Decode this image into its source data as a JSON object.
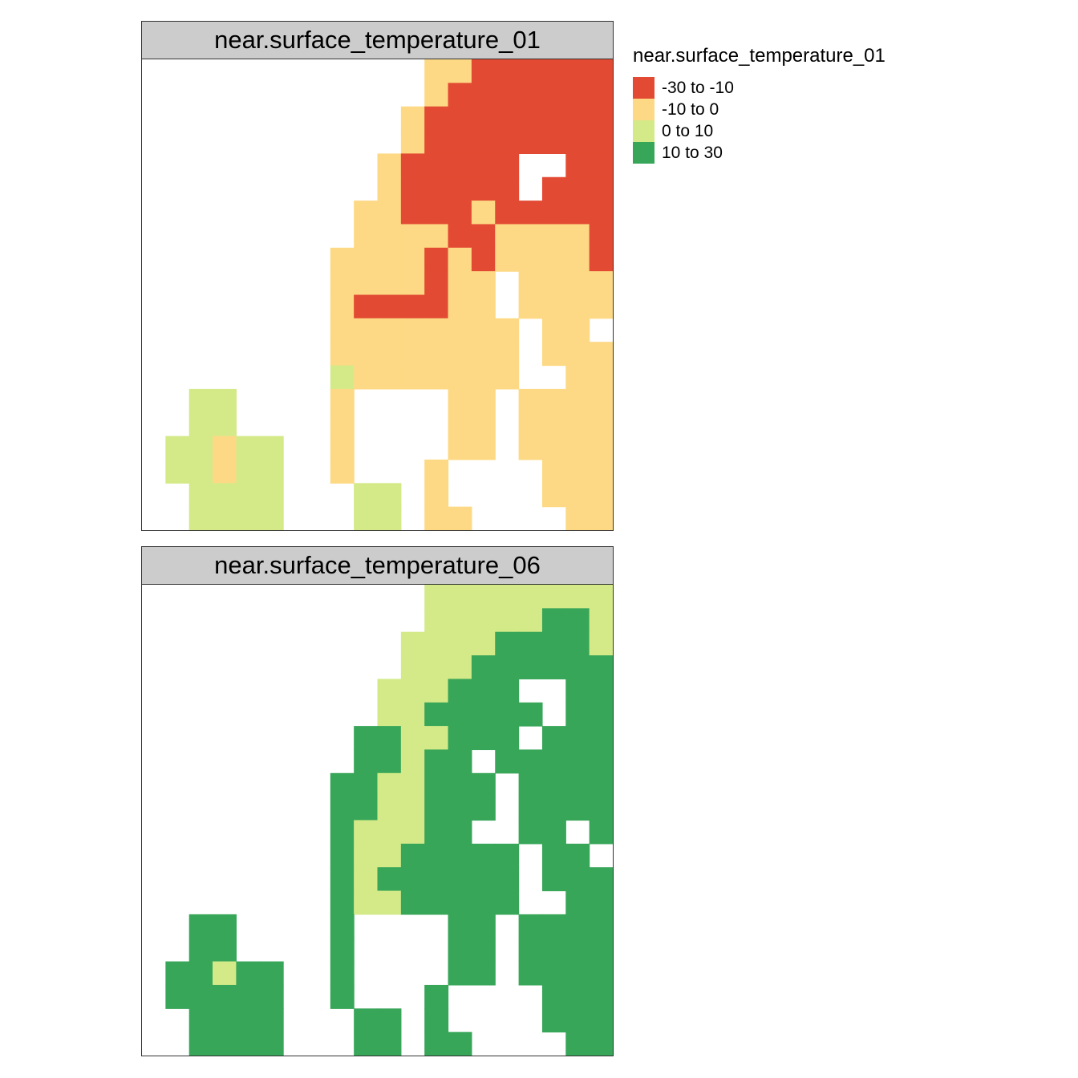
{
  "panels": [
    {
      "title": "near.surface_temperature_01"
    },
    {
      "title": "near.surface_temperature_06"
    }
  ],
  "legend": {
    "title": "near.surface_temperature_01",
    "classes": [
      {
        "label": "-30 to -10",
        "color": "#E34A33",
        "code": "R"
      },
      {
        "label": "-10 to 0",
        "color": "#FDD985",
        "code": "Y"
      },
      {
        "label": "0 to 10",
        "color": "#D4EA88",
        "code": "L"
      },
      {
        "label": "10 to 30",
        "color": "#38A659",
        "code": "G"
      }
    ]
  },
  "chart_data": [
    {
      "type": "heatmap",
      "title": "near.surface_temperature_01",
      "grid_note": "20 columns x 20 rows raster; codes: R=-30 to -10, Y=-10 to 0, L=0 to 10, G=10 to 30, .=no data",
      "rows": [
        "............YYRRRRRR",
        "............YRRRRRRR",
        "...........YRRRRRRRR",
        "...........YRRRRRRRR",
        "..........YRRRRR..RR",
        "..........YRRRRR.RRR",
        ".........YYRRRYRRRRR",
        ".........YYYYRRYYYYR",
        "........YYYYRYRYYYYR",
        "........YYYYRYY.YYYY",
        "........YRRRRYY.YYYY",
        "........YYYYYYYY.YY.",
        "........YYYYYYYY.YYY",
        "........LYYYYYYY..YY",
        "..LL....Y....YY.YYYY",
        "..LL....Y....YY.YYYY",
        ".LLYLL..Y....YY.YYYY",
        ".LLYLL..Y...Y....YYY",
        "..LLLL...LL.Y....YYY",
        "..LLLL...LL.YY....YY"
      ]
    },
    {
      "type": "heatmap",
      "title": "near.surface_temperature_06",
      "grid_note": "20 columns x 20 rows raster; codes: R=-30 to -10, Y=-10 to 0, L=0 to 10, G=10 to 30, .=no data",
      "rows": [
        "............LLLLLLLL",
        "............LLLLLGGL",
        "...........LLLLGGGGL",
        "...........LLLGGGGGG",
        "..........LLLGGG..GG",
        "..........LLGGGGG.GG",
        ".........GGLLGGG.GGG",
        ".........GGLGG.GGGGG",
        "........GGLLGGG.GGGG",
        "........GGLLGGG.GGGG",
        "........GLLLGG..GG.G",
        "........GLLGGGGG.GG.",
        "........GLGGGGGG.GGG",
        "........GLLGGGGG..GG",
        "..GG....G....GG.GGGG",
        "..GG....G....GG.GGGG",
        ".GGLGG..G....GG.GGGG",
        ".GGGGG..G...G....GGG",
        "..GGGG...GG.G....GGG",
        "..GGGG...GG.GG....GG"
      ]
    }
  ]
}
